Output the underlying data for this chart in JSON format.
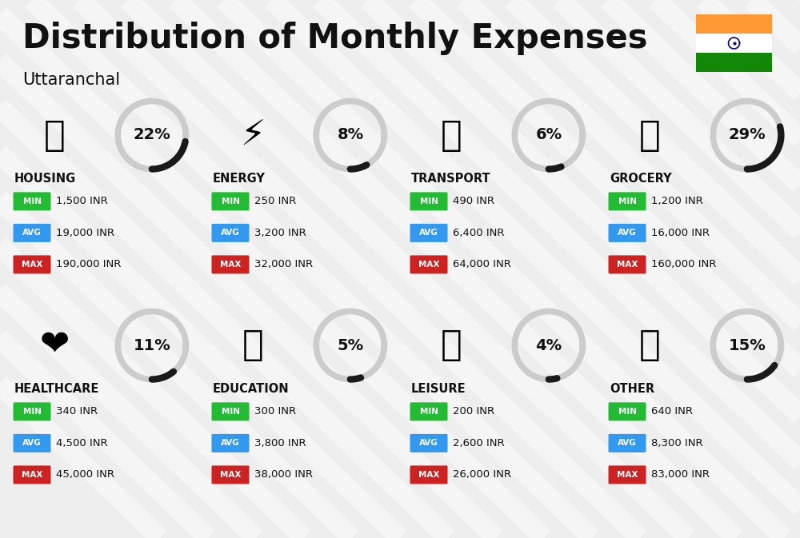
{
  "title": "Distribution of Monthly Expenses",
  "subtitle": "Uttaranchal",
  "bg_color": "#eeeeee",
  "categories": [
    {
      "name": "HOUSING",
      "pct": 22,
      "icon": "🏢",
      "min": "1,500 INR",
      "avg": "19,000 INR",
      "max": "190,000 INR"
    },
    {
      "name": "ENERGY",
      "pct": 8,
      "icon": "⚡",
      "min": "250 INR",
      "avg": "3,200 INR",
      "max": "32,000 INR"
    },
    {
      "name": "TRANSPORT",
      "pct": 6,
      "icon": "🚌",
      "min": "490 INR",
      "avg": "6,400 INR",
      "max": "64,000 INR"
    },
    {
      "name": "GROCERY",
      "pct": 29,
      "icon": "🛒",
      "min": "1,200 INR",
      "avg": "16,000 INR",
      "max": "160,000 INR"
    },
    {
      "name": "HEALTHCARE",
      "pct": 11,
      "icon": "❤️",
      "min": "340 INR",
      "avg": "4,500 INR",
      "max": "45,000 INR"
    },
    {
      "name": "EDUCATION",
      "pct": 5,
      "icon": "🎓",
      "min": "300 INR",
      "avg": "3,800 INR",
      "max": "38,000 INR"
    },
    {
      "name": "LEISURE",
      "pct": 4,
      "icon": "🛍️",
      "min": "200 INR",
      "avg": "2,600 INR",
      "max": "26,000 INR"
    },
    {
      "name": "OTHER",
      "pct": 15,
      "icon": "💰",
      "min": "640 INR",
      "avg": "8,300 INR",
      "max": "83,000 INR"
    }
  ],
  "color_min": "#22bb33",
  "color_avg": "#3399ee",
  "color_max": "#cc2222",
  "arc_dark": "#1a1a1a",
  "arc_light": "#cccccc",
  "india_flag_orange": "#FF9933",
  "india_flag_white": "#FFFFFF",
  "india_flag_green": "#138808",
  "india_flag_blue": "#000080",
  "text_dark": "#111111",
  "text_mid": "#555555",
  "stripe_color": "#e8e8e8"
}
